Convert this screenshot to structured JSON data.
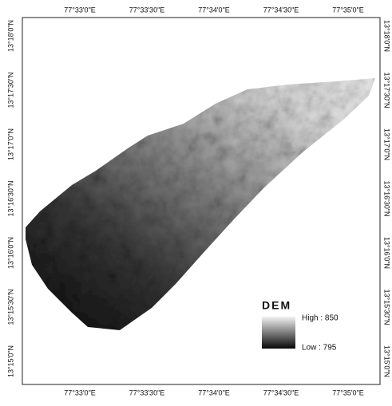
{
  "map": {
    "top_labels": [
      "77°33'0\"E",
      "77°33'30\"E",
      "77°34'0\"E",
      "77°34'30\"E",
      "77°35'0\"E"
    ],
    "bottom_labels": [
      "77°33'0\"E",
      "77°33'30\"E",
      "77°34'0\"E",
      "77°34'30\"E",
      "77°35'0\"E"
    ],
    "left_labels": [
      "13°18'0\"N",
      "13°17'30\"N",
      "13°17'0\"N",
      "13°16'30\"N",
      "13°16'0\"N",
      "13°15'30\"N",
      "13°15'0\"N"
    ],
    "right_labels": [
      "13°18'0\"N",
      "13°17'30\"N",
      "13°17'0\"N",
      "13°16'30\"N",
      "13°16'0\"N",
      "13°15'30\"N",
      "13°15'0\"N"
    ],
    "legend": {
      "title": "DEM",
      "high": "High : 850",
      "low": "Low : 795"
    }
  }
}
